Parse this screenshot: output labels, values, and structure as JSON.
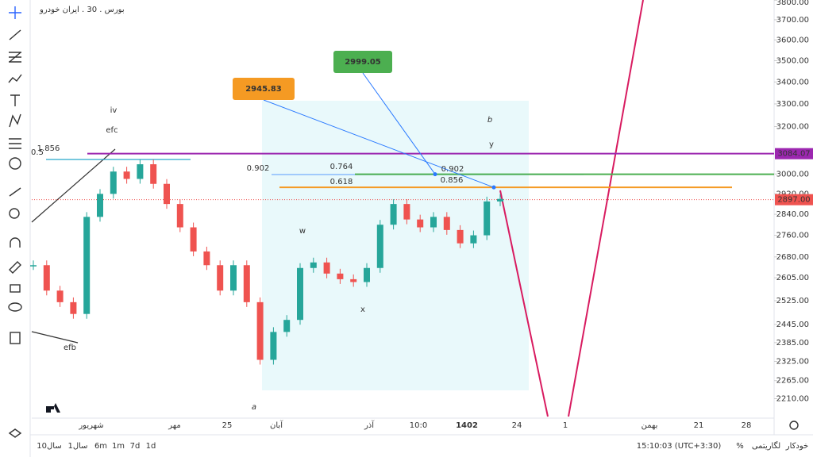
{
  "header": {
    "symbol": "بورس . 30 . ایران خودرو"
  },
  "price_axis": {
    "log": true,
    "ylim": [
      2157,
      3801
    ],
    "ticks": [
      {
        "value": 3800,
        "label": "3800.00"
      },
      {
        "value": 3700,
        "label": "3700.00"
      },
      {
        "value": 3600,
        "label": "3600.00"
      },
      {
        "value": 3500,
        "label": "3500.00"
      },
      {
        "value": 3400,
        "label": "3400.00"
      },
      {
        "value": 3300,
        "label": "3300.00"
      },
      {
        "value": 3200,
        "label": "3200.00"
      },
      {
        "value": 3000,
        "label": "3000.00"
      },
      {
        "value": 2920,
        "label": "2920.00"
      },
      {
        "value": 2840,
        "label": "2840.00"
      },
      {
        "value": 2760,
        "label": "2760.00"
      },
      {
        "value": 2680,
        "label": "2680.00"
      },
      {
        "value": 2605,
        "label": "2605.00"
      },
      {
        "value": 2525,
        "label": "2525.00"
      },
      {
        "value": 2445,
        "label": "2445.00"
      },
      {
        "value": 2385,
        "label": "2385.00"
      },
      {
        "value": 2325,
        "label": "2325.00"
      },
      {
        "value": 2265,
        "label": "2265.00"
      },
      {
        "value": 2210,
        "label": "2210.00"
      }
    ],
    "current": {
      "value": 2897,
      "label": "2897.00"
    }
  },
  "levels": [
    {
      "value": 3084.07,
      "color": "#9c27b0"
    },
    {
      "value": 2999.05,
      "color": "#4caf50"
    },
    {
      "value": 2945.83,
      "color": "#f59a23"
    }
  ],
  "candles": {
    "up_color": "#26a69a",
    "down_color": "#ef5350",
    "closes": [
      2650,
      2560,
      2520,
      2480,
      2830,
      2920,
      3010,
      2980,
      3040,
      2960,
      2880,
      2790,
      2700,
      2650,
      2560,
      2650,
      2520,
      2330,
      2420,
      2460,
      2640,
      2660,
      2620,
      2600,
      2590,
      2640,
      2800,
      2880,
      2820,
      2790,
      2830,
      2780,
      2730,
      2760,
      2890,
      2900
    ]
  },
  "annotations": [
    {
      "text": "iv",
      "color": "#e53935"
    },
    {
      "text": "efc",
      "color": "#26a6c9"
    },
    {
      "text": "efb",
      "color": "#26a6c9"
    },
    {
      "text": "w",
      "color": "#333333"
    },
    {
      "text": "x",
      "color": "#333333"
    },
    {
      "text": "y",
      "color": "#333333"
    },
    {
      "text": "b",
      "color": "#e53935"
    },
    {
      "text": "a",
      "color": "#e53935"
    },
    {
      "text": "0.5",
      "color": "#26a6c9"
    },
    {
      "text": "1.856",
      "color": "#333333"
    },
    {
      "text": "0.902",
      "color": "#2979ff"
    },
    {
      "text": "0.764",
      "color": "#333333"
    },
    {
      "text": "0.902",
      "color": "#e57373"
    },
    {
      "text": "0.618",
      "color": "#333333"
    },
    {
      "text": "0.856",
      "color": "#e57373"
    }
  ],
  "time_axis": [
    "شهریور",
    "مهر",
    "25",
    "آبان",
    "آذر",
    "10:0",
    "1402",
    "24",
    "1",
    "بهمن",
    "21",
    "28"
  ],
  "bottom_bar": {
    "ranges": [
      "10سال",
      "1سال",
      "6m",
      "1m",
      "7d",
      "1d"
    ],
    "clock": "15:10:03 (UTC+3:30)",
    "percent": "%",
    "log": "لگاریتمی",
    "auto": "خودکار"
  }
}
